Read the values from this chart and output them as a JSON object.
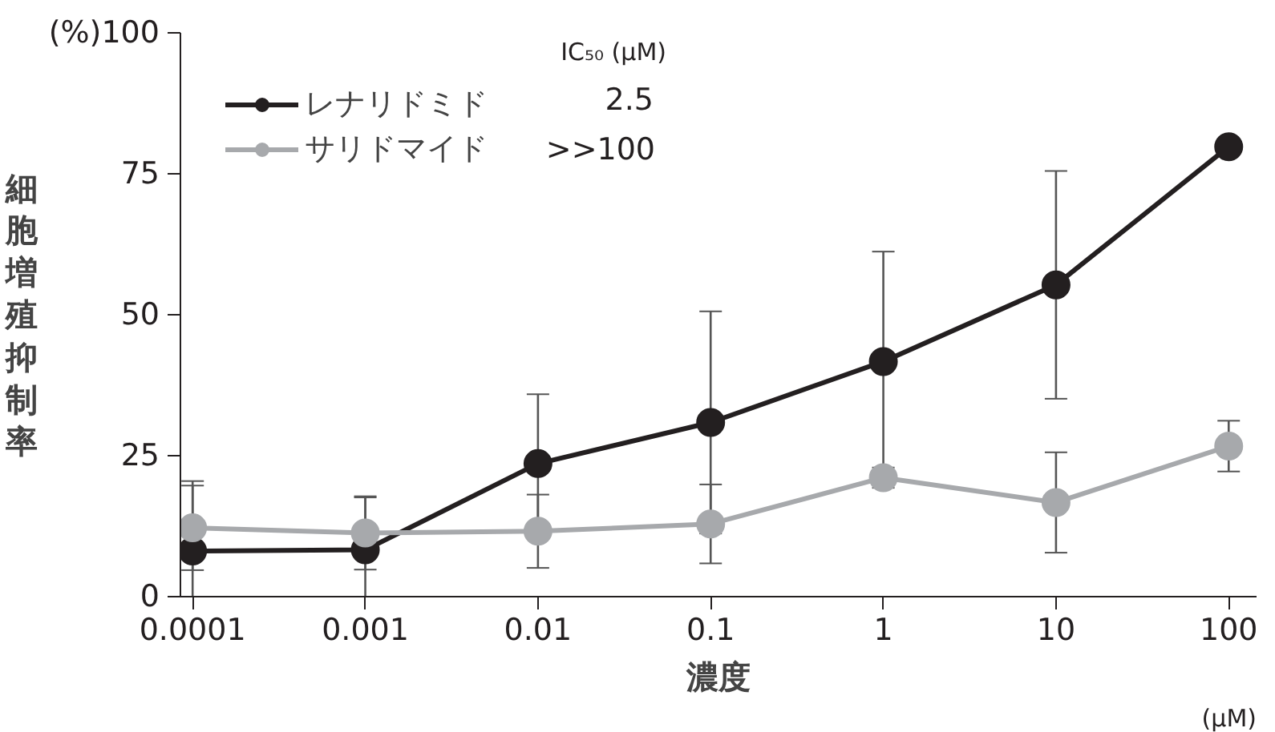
{
  "chart_data": {
    "type": "line",
    "xlabel": "濃度",
    "ylabel": "細胞増殖抑制率",
    "x": [
      0.0001,
      0.001,
      0.01,
      0.1,
      1,
      10,
      100
    ],
    "series": [
      {
        "name": "レナリドミド",
        "color": "#231f20",
        "values": [
          8.1,
          8.3,
          23.6,
          30.9,
          41.7,
          55.3,
          79.8
        ],
        "errors": [
          12.4,
          9.3,
          12.3,
          19.7,
          19.5,
          20.2,
          null
        ]
      },
      {
        "name": "サリドマイド",
        "color": "#a7a9ac",
        "values": [
          12.2,
          11.3,
          11.6,
          12.9,
          21.1,
          16.7,
          26.7
        ],
        "errors": [
          7.5,
          6.5,
          6.5,
          7.0,
          1.8,
          8.9,
          4.5
        ]
      }
    ],
    "log": "x",
    "xlim": [
      8.5e-05,
      145
    ],
    "xticks": [
      0.0001,
      0.001,
      0.01,
      0.1,
      1,
      10,
      100
    ],
    "ylim": [
      0,
      100
    ],
    "yticks": [
      0,
      25,
      50,
      75,
      {
        "value": 100,
        "label": "(%)100"
      }
    ],
    "grid": false,
    "legend": "top left",
    "marker": "circle",
    "line_style": "solid",
    "annotations": [
      "IC₅₀ (μM)",
      "2.5",
      ">>100",
      "(μM)"
    ]
  }
}
